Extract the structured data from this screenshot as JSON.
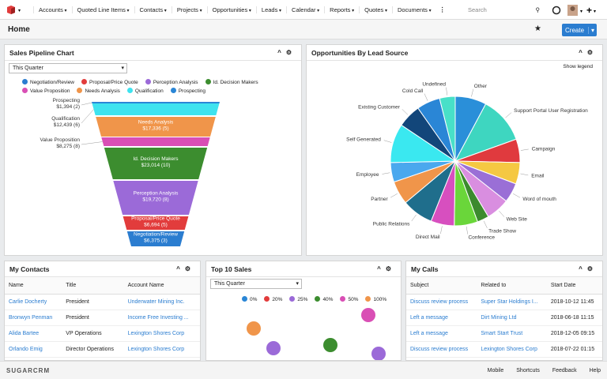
{
  "nav": {
    "items": [
      "Accounts",
      "Quoted Line Items",
      "Contacts",
      "Projects",
      "Opportunities",
      "Leads",
      "Calendar",
      "Reports",
      "Quotes",
      "Documents"
    ],
    "search": "Search"
  },
  "header": {
    "title": "Home",
    "create": "Create"
  },
  "pipeline": {
    "title": "Sales Pipeline Chart",
    "filter": "This Quarter",
    "legend": [
      {
        "label": "Negotiation/Review",
        "color": "#2b7dd0"
      },
      {
        "label": "Proposal/Price Quote",
        "color": "#e23c3c"
      },
      {
        "label": "Perception Analysis",
        "color": "#9b6ad8"
      },
      {
        "label": "Id. Decision Makers",
        "color": "#3c8d2f"
      },
      {
        "label": "Value Proposition",
        "color": "#d94fb5"
      },
      {
        "label": "Needs Analysis",
        "color": "#f0954a"
      },
      {
        "label": "Qualification",
        "color": "#3ee3ef"
      },
      {
        "label": "Prospecting",
        "color": "#2a86d6"
      }
    ],
    "stages": [
      {
        "name": "Prospecting",
        "amount": "$1,394 (2)"
      },
      {
        "name": "Qualification",
        "amount": "$12,439 (6)"
      },
      {
        "name": "Needs Analysis",
        "amount": "$17,336 (5)"
      },
      {
        "name": "Value Proposition",
        "amount": "$8,275 (8)"
      },
      {
        "name": "Id. Decision Makers",
        "amount": "$23,014 (10)"
      },
      {
        "name": "Perception Analysis",
        "amount": "$19,720 (8)"
      },
      {
        "name": "Proposal/Price Quote",
        "amount": "$6,694 (5)"
      },
      {
        "name": "Negotiation/Review",
        "amount": "$6,375 (3)"
      }
    ]
  },
  "lead_source": {
    "title": "Opportunities By Lead Source",
    "show_legend": "Show legend",
    "slices": [
      {
        "label": "Other",
        "value": 8,
        "color": "#2a8fd9"
      },
      {
        "label": "Support Portal User Registration",
        "value": 12,
        "color": "#3ed6c0"
      },
      {
        "label": "Campaign",
        "value": 6,
        "color": "#e03a3e"
      },
      {
        "label": "Email",
        "value": 5.5,
        "color": "#f5c842"
      },
      {
        "label": "Word of mouth",
        "value": 5,
        "color": "#9a6fd6"
      },
      {
        "label": "Web Site",
        "value": 6,
        "color": "#d98ee0"
      },
      {
        "label": "Trade Show",
        "value": 3,
        "color": "#3c8a2e"
      },
      {
        "label": "Conference",
        "value": 6,
        "color": "#6ad63a"
      },
      {
        "label": "Direct Mail",
        "value": 6,
        "color": "#d74fbf"
      },
      {
        "label": "Public Relations",
        "value": 8,
        "color": "#1f6e8c"
      },
      {
        "label": "Partner",
        "value": 6,
        "color": "#f0954a"
      },
      {
        "label": "Employee",
        "value": 5,
        "color": "#4aa8ee"
      },
      {
        "label": "Self Generated",
        "value": 10,
        "color": "#3ae8f0"
      },
      {
        "label": "Existing Customer",
        "value": 6,
        "color": "#12467a"
      },
      {
        "label": "Cold Call",
        "value": 6,
        "color": "#2a86d6"
      },
      {
        "label": "Undefined",
        "value": 4,
        "color": "#48e0c8"
      }
    ]
  },
  "contacts": {
    "title": "My Contacts",
    "columns": [
      "Name",
      "Title",
      "Account Name"
    ],
    "rows": [
      [
        "Carlie Docherty",
        "President",
        "Underwater Mining Inc."
      ],
      [
        "Bronwyn Penman",
        "President",
        "Income Free Investing ..."
      ],
      [
        "Alida Bartee",
        "VP Operations",
        "Lexington Shores Corp"
      ],
      [
        "Orlando Emig",
        "Director Operations",
        "Lexington Shores Corp"
      ]
    ]
  },
  "top_sales": {
    "title": "Top 10 Sales",
    "filter": "This Quarter",
    "legend": [
      {
        "label": "0%",
        "color": "#2a86d6"
      },
      {
        "label": "20%",
        "color": "#e23c3c"
      },
      {
        "label": "25%",
        "color": "#9b6ad8"
      },
      {
        "label": "40%",
        "color": "#3c8d2f"
      },
      {
        "label": "50%",
        "color": "#d94fb5"
      },
      {
        "label": "100%",
        "color": "#f0954a"
      }
    ]
  },
  "calls": {
    "title": "My Calls",
    "columns": [
      "Subject",
      "Related to",
      "Start Date"
    ],
    "rows": [
      [
        "Discuss review process",
        "Super Star Holdings I...",
        "2018-10-12 11:45"
      ],
      [
        "Left a message",
        "Dirt Mining Ltd",
        "2018-06-18 11:15"
      ],
      [
        "Left a message",
        "Smart Start Trust",
        "2018-12-05 09:15"
      ],
      [
        "Discuss review process",
        "Lexington Shores Corp",
        "2018-07-22 01:15"
      ]
    ]
  },
  "footer": {
    "logo": "SUGARCRM",
    "links": [
      "Mobile",
      "Shortcuts",
      "Feedback",
      "Help"
    ]
  }
}
